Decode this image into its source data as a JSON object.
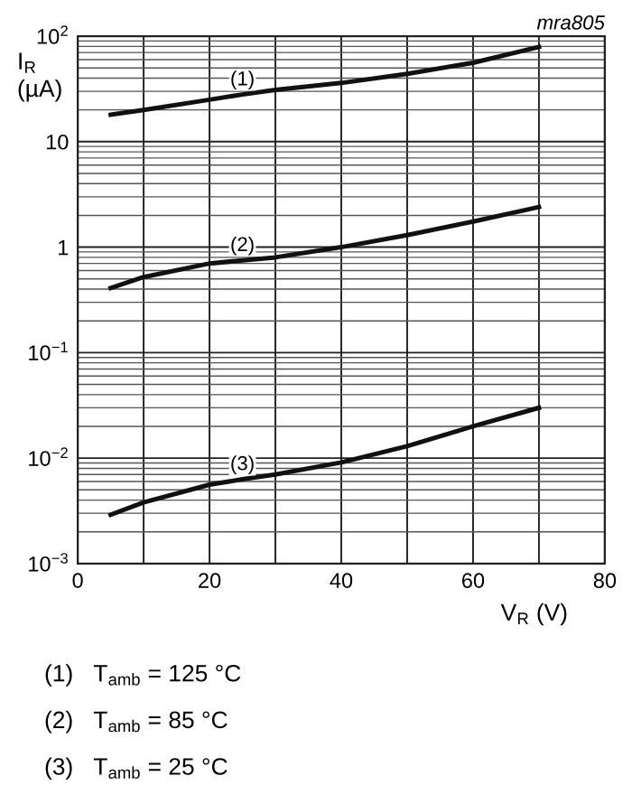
{
  "chart_data": {
    "type": "line",
    "xlabel": "V$_{R}$ (V)",
    "ylabel": "I$_{R}$\n(µA)",
    "x": [
      5,
      10,
      20,
      25,
      30,
      40,
      50,
      60,
      70
    ],
    "series": [
      {
        "name": "(1)",
        "color": "#111111",
        "values": [
          18,
          20,
          25,
          28,
          31,
          36,
          44,
          56,
          79
        ]
      },
      {
        "name": "(2)",
        "color": "#111111",
        "values": [
          0.41,
          0.52,
          0.7,
          0.75,
          0.8,
          1.0,
          1.3,
          1.75,
          2.4
        ]
      },
      {
        "name": "(3)",
        "color": "#111111",
        "values": [
          0.0029,
          0.0038,
          0.0056,
          0.0063,
          0.007,
          0.0091,
          0.013,
          0.02,
          0.03
        ]
      }
    ],
    "log": "y",
    "xlim": [
      0,
      80
    ],
    "ylim": [
      0.001,
      100
    ],
    "xticks": [
      0,
      {
        "value": 10,
        "label": null
      },
      20,
      {
        "value": 30,
        "label": null
      },
      40,
      {
        "value": 50,
        "label": null
      },
      60,
      {
        "value": 70,
        "label": null
      },
      80
    ],
    "yticks": [
      {
        "value": 0.001,
        "label": "10$^{−3}$"
      },
      {
        "value": 0.01,
        "label": "10$^{−2}$"
      },
      {
        "value": 0.1,
        "label": "10$^{−1}$"
      },
      1,
      10,
      {
        "value": 100,
        "label": "10$^{2}$"
      }
    ],
    "grid": true,
    "marker": "none",
    "line_style": "solid",
    "annotations": [
      "mra805",
      "(1)   T$_{amb}$ = 125 °C",
      "(2)   T$_{amb}$ = 85 °C",
      "(3)   T$_{amb}$ = 25 °C"
    ]
  }
}
